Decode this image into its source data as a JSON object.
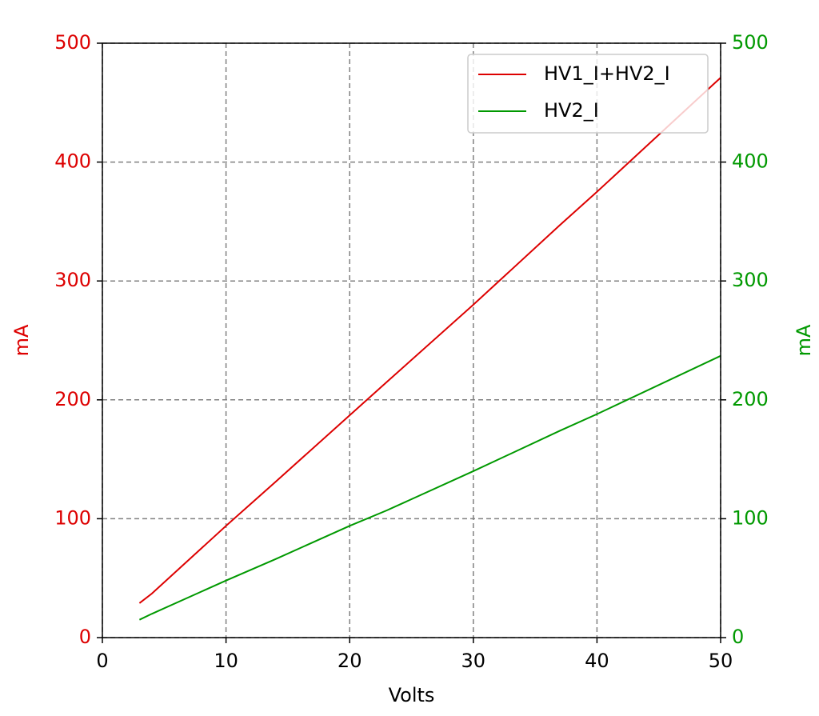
{
  "chart_data": {
    "type": "line",
    "xlabel": "Volts",
    "ylabel": "mA",
    "y2label": "mA",
    "x": [
      3,
      4,
      10,
      14,
      20,
      23,
      30,
      37,
      40,
      50
    ],
    "series": [
      {
        "name": "HV1_I+HV2_I",
        "color": "#dd0000",
        "values": [
          29,
          37,
          94,
          131,
          187,
          215,
          280,
          347,
          375,
          471
        ]
      },
      {
        "name": "HV2_I",
        "color": "#009900",
        "axis": "y2",
        "values": [
          15,
          20,
          48,
          66,
          94,
          107,
          140,
          174,
          188,
          237
        ]
      }
    ],
    "xlim": [
      0,
      50
    ],
    "xticks": [
      0,
      10,
      20,
      30,
      40,
      50
    ],
    "ylim": [
      0,
      500
    ],
    "yticks": [
      0,
      100,
      200,
      300,
      400,
      500
    ],
    "y2lim": [
      0,
      500
    ],
    "y2ticks": [
      0,
      100,
      200,
      300,
      400,
      500
    ],
    "grid": true,
    "legend": "upper right"
  }
}
